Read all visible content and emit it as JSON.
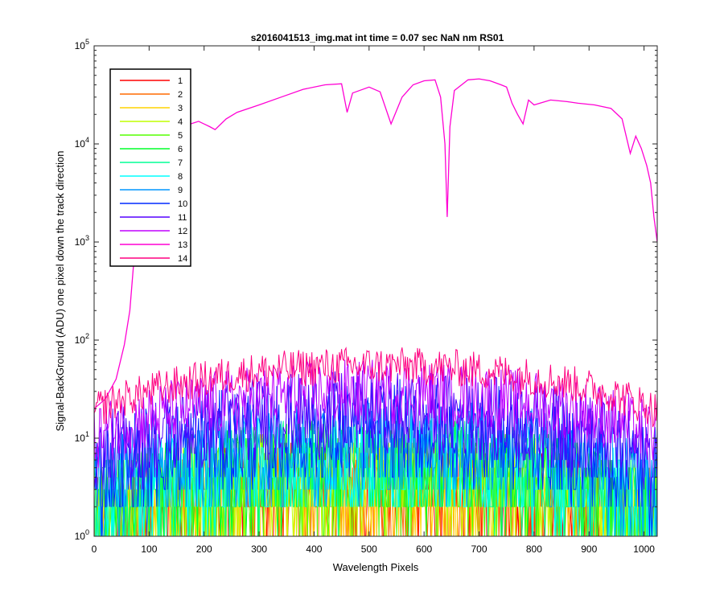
{
  "chart_data": {
    "type": "line",
    "title": "s2016041513_img.mat int time = 0.07 sec  NaN nm RS01",
    "xlabel": "Wavelength Pixels",
    "ylabel": "Signal-BackGround (ADU) one pixel down the track direction",
    "xlim": [
      0,
      1024
    ],
    "ylim": [
      1,
      100000
    ],
    "yscale": "log",
    "grid": false,
    "legend_position": "top-left",
    "x_ticks": [
      0,
      100,
      200,
      300,
      400,
      500,
      600,
      700,
      800,
      900,
      1000
    ],
    "y_ticks": [
      {
        "base": "10",
        "exp": "0",
        "value": 1
      },
      {
        "base": "10",
        "exp": "1",
        "value": 10
      },
      {
        "base": "10",
        "exp": "2",
        "value": 100
      },
      {
        "base": "10",
        "exp": "3",
        "value": 1000
      },
      {
        "base": "10",
        "exp": "4",
        "value": 10000
      },
      {
        "base": "10",
        "exp": "5",
        "value": 100000
      }
    ],
    "series": [
      {
        "name": "1",
        "color": "#ff0000",
        "typical": 3,
        "noise": 3
      },
      {
        "name": "2",
        "color": "#ff6a00",
        "typical": 3,
        "noise": 3
      },
      {
        "name": "3",
        "color": "#ffd400",
        "typical": 3,
        "noise": 3
      },
      {
        "name": "4",
        "color": "#c0ff00",
        "typical": 4,
        "noise": 3
      },
      {
        "name": "5",
        "color": "#55ff00",
        "typical": 4,
        "noise": 3
      },
      {
        "name": "6",
        "color": "#00ff2a",
        "typical": 5,
        "noise": 3
      },
      {
        "name": "7",
        "color": "#00ff95",
        "typical": 5,
        "noise": 3
      },
      {
        "name": "8",
        "color": "#00ffff",
        "typical": 6,
        "noise": 3
      },
      {
        "name": "9",
        "color": "#0095ff",
        "typical": 8,
        "noise": 3
      },
      {
        "name": "10",
        "color": "#002aff",
        "typical": 12,
        "noise": 3
      },
      {
        "name": "11",
        "color": "#5500ff",
        "typical": 18,
        "noise": 2.5
      },
      {
        "name": "12",
        "color": "#c000ff",
        "typical": 30,
        "noise": 2
      },
      {
        "name": "13",
        "color": "#ff00d4",
        "points": [
          [
            0,
            20
          ],
          [
            20,
            25
          ],
          [
            40,
            40
          ],
          [
            55,
            90
          ],
          [
            65,
            200
          ],
          [
            75,
            1000
          ],
          [
            85,
            3000
          ],
          [
            100,
            10000
          ],
          [
            130,
            13000
          ],
          [
            160,
            15000
          ],
          [
            190,
            17000
          ],
          [
            210,
            15000
          ],
          [
            220,
            14000
          ],
          [
            240,
            18000
          ],
          [
            260,
            21000
          ],
          [
            300,
            25000
          ],
          [
            340,
            30000
          ],
          [
            380,
            36000
          ],
          [
            420,
            40000
          ],
          [
            450,
            41000
          ],
          [
            460,
            21000
          ],
          [
            470,
            33000
          ],
          [
            500,
            38000
          ],
          [
            520,
            34000
          ],
          [
            540,
            16000
          ],
          [
            560,
            30000
          ],
          [
            580,
            40000
          ],
          [
            600,
            44000
          ],
          [
            620,
            45000
          ],
          [
            630,
            30000
          ],
          [
            638,
            10000
          ],
          [
            642,
            1800
          ],
          [
            647,
            15000
          ],
          [
            655,
            35000
          ],
          [
            680,
            45000
          ],
          [
            700,
            46000
          ],
          [
            720,
            44000
          ],
          [
            740,
            40000
          ],
          [
            750,
            38000
          ],
          [
            760,
            26000
          ],
          [
            770,
            20000
          ],
          [
            780,
            16000
          ],
          [
            790,
            28000
          ],
          [
            800,
            25000
          ],
          [
            830,
            28000
          ],
          [
            860,
            27000
          ],
          [
            880,
            26000
          ],
          [
            910,
            25000
          ],
          [
            940,
            23000
          ],
          [
            960,
            18000
          ],
          [
            975,
            8000
          ],
          [
            985,
            12000
          ],
          [
            995,
            9000
          ],
          [
            1005,
            6000
          ],
          [
            1012,
            4000
          ],
          [
            1018,
            1800
          ],
          [
            1024,
            1000
          ]
        ]
      },
      {
        "name": "14",
        "color": "#ff0080",
        "typical": 55,
        "noise": 1.5
      }
    ]
  }
}
